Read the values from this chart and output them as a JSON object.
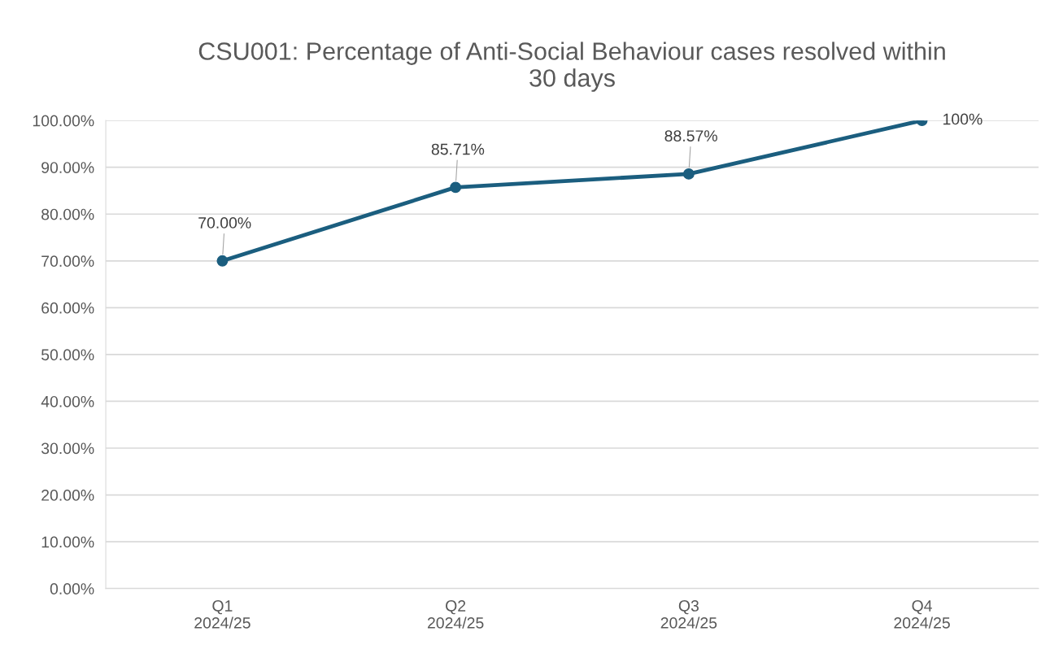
{
  "chart_data": {
    "type": "line",
    "title": "CSU001: Percentage of Anti-Social Behaviour cases resolved within\n30 days",
    "categories": [
      "Q1\n2024/25",
      "Q2\n2024/25",
      "Q3\n2024/25",
      "Q4\n2024/25"
    ],
    "series": [
      {
        "color": "#1b5e7f",
        "values": [
          70,
          85.71,
          88.57,
          100
        ],
        "value_labels": [
          "70.00%",
          "85.71%",
          "88.57%",
          "100%"
        ]
      }
    ],
    "ylim": [
      0,
      100
    ],
    "yticks": [
      {
        "value": 0,
        "label": "0.00%"
      },
      {
        "value": 10,
        "label": "10.00%"
      },
      {
        "value": 20,
        "label": "20.00%"
      },
      {
        "value": 30,
        "label": "30.00%"
      },
      {
        "value": 40,
        "label": "40.00%"
      },
      {
        "value": 50,
        "label": "50.00%"
      },
      {
        "value": 60,
        "label": "60.00%"
      },
      {
        "value": 70,
        "label": "70.00%"
      },
      {
        "value": 80,
        "label": "80.00%"
      },
      {
        "value": 90,
        "label": "90.00%"
      },
      {
        "value": 100,
        "label": "100.00%"
      }
    ],
    "grid": "y",
    "marker": "circle",
    "line_style": "solid"
  }
}
